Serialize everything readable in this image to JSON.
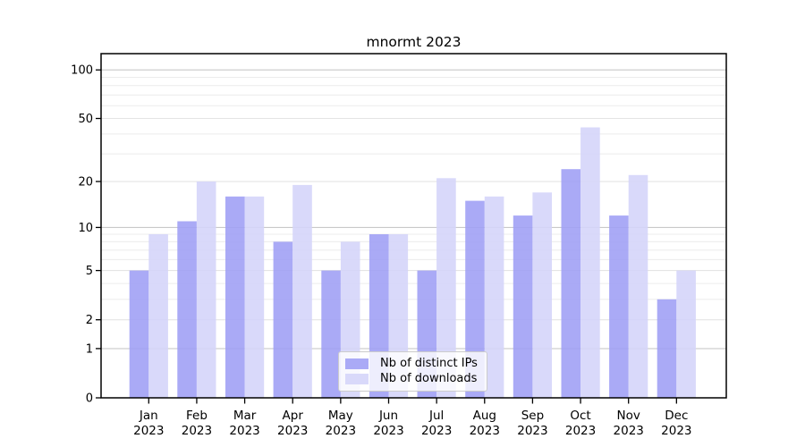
{
  "title": "mnormt 2023",
  "chart_data": {
    "type": "bar",
    "title": "mnormt 2023",
    "categories": [
      "Jan",
      "Feb",
      "Mar",
      "Apr",
      "May",
      "Jun",
      "Jul",
      "Aug",
      "Sep",
      "Oct",
      "Nov",
      "Dec"
    ],
    "category_sublabel": "2023",
    "series": [
      {
        "name": "Nb of distinct IPs",
        "color": "#aaaaf6",
        "values": [
          5,
          11,
          16,
          8,
          5,
          9,
          5,
          15,
          12,
          24,
          12,
          3
        ]
      },
      {
        "name": "Nb of downloads",
        "color": "#d9d9fa",
        "values": [
          9,
          20,
          16,
          19,
          8,
          9,
          21,
          16,
          17,
          44,
          22,
          5
        ]
      }
    ],
    "yscale": "log1p",
    "ylim": [
      0,
      126
    ],
    "yticks": [
      0,
      1,
      2,
      5,
      10,
      20,
      50,
      100
    ],
    "decade_ticks": [
      1,
      10,
      100
    ],
    "minor_gridlines": [
      3,
      4,
      6,
      7,
      8,
      9,
      30,
      40,
      60,
      70,
      80,
      90
    ],
    "grid": true,
    "legend_position": "lower center",
    "xlabel": "",
    "ylabel": ""
  },
  "colors": {
    "background": "#ffffff",
    "axis": "#000000",
    "tick_label": "#000000",
    "grid_minor": "#ececec",
    "grid_major": "#e4e4e4",
    "grid_decade": "#c9c9c9",
    "legend_border": "#cccccc"
  }
}
